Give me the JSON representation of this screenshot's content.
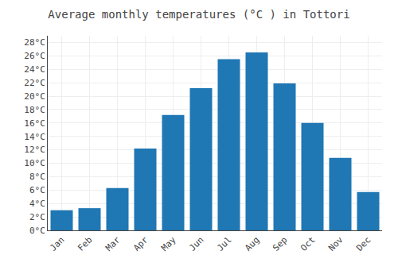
{
  "chart_data": {
    "type": "bar",
    "title": "Average monthly temperatures (°C ) in Tottori",
    "categories": [
      "Jan",
      "Feb",
      "Mar",
      "Apr",
      "May",
      "Jun",
      "Jul",
      "Aug",
      "Sep",
      "Oct",
      "Nov",
      "Dec"
    ],
    "values": [
      3.0,
      3.3,
      6.3,
      12.2,
      17.2,
      21.2,
      25.5,
      26.5,
      21.9,
      16.0,
      10.8,
      5.7
    ],
    "ylim": [
      0,
      29
    ],
    "yticks": [
      {
        "value": 0,
        "label": "0°C"
      },
      {
        "value": 2,
        "label": "2°C"
      },
      {
        "value": 4,
        "label": "4°C"
      },
      {
        "value": 6,
        "label": "6°C"
      },
      {
        "value": 8,
        "label": "8°C"
      },
      {
        "value": 10,
        "label": "10°C"
      },
      {
        "value": 12,
        "label": "12°C"
      },
      {
        "value": 14,
        "label": "14°C"
      },
      {
        "value": 16,
        "label": "16°C"
      },
      {
        "value": 18,
        "label": "18°C"
      },
      {
        "value": 20,
        "label": "20°C"
      },
      {
        "value": 22,
        "label": "22°C"
      },
      {
        "value": 24,
        "label": "24°C"
      },
      {
        "value": 26,
        "label": "26°C"
      },
      {
        "value": 28,
        "label": "28°C"
      }
    ],
    "grid": true
  }
}
